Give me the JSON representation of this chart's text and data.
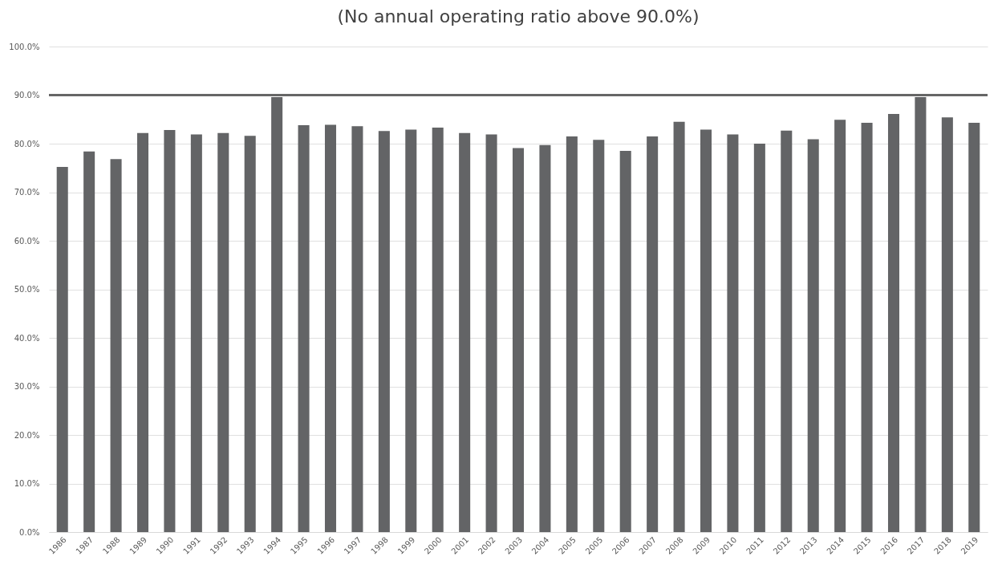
{
  "chart_data": {
    "type": "bar",
    "title": "(No annual operating ratio above 90.0%)",
    "categories": [
      "1986",
      "1987",
      "1988",
      "1989",
      "1990",
      "1991",
      "1992",
      "1993",
      "1994",
      "1995",
      "1996",
      "1997",
      "1998",
      "1999",
      "2000",
      "2001",
      "2002",
      "2003",
      "2004",
      "2005",
      "2005",
      "2006",
      "2007",
      "2008",
      "2009",
      "2010",
      "2011",
      "2012",
      "2013",
      "2014",
      "2015",
      "2016",
      "2017",
      "2018",
      "2019"
    ],
    "values": [
      75.2,
      78.4,
      76.8,
      82.2,
      82.8,
      81.9,
      82.2,
      81.6,
      89.6,
      83.8,
      83.9,
      83.6,
      82.6,
      82.9,
      83.3,
      82.2,
      81.9,
      79.1,
      79.7,
      81.5,
      80.8,
      78.5,
      81.5,
      84.5,
      82.9,
      81.9,
      80.0,
      82.7,
      80.9,
      84.9,
      84.3,
      86.1,
      89.6,
      85.4,
      84.3
    ],
    "color": "#636466",
    "ylim": [
      0,
      100
    ],
    "yticks": [
      {
        "value": 0,
        "label": "0.0%"
      },
      {
        "value": 10,
        "label": "10.0%"
      },
      {
        "value": 20,
        "label": "20.0%"
      },
      {
        "value": 30,
        "label": "30.0%"
      },
      {
        "value": 40,
        "label": "40.0%"
      },
      {
        "value": 50,
        "label": "50.0%"
      },
      {
        "value": 60,
        "label": "60.0%"
      },
      {
        "value": 70,
        "label": "70.0%"
      },
      {
        "value": 80,
        "label": "80.0%"
      },
      {
        "value": 90,
        "label": "90.0%"
      },
      {
        "value": 100,
        "label": "100.0%"
      }
    ],
    "grid": "y",
    "ref_lines": [
      {
        "axis": "y",
        "value": 90,
        "color": "#666666"
      }
    ]
  }
}
